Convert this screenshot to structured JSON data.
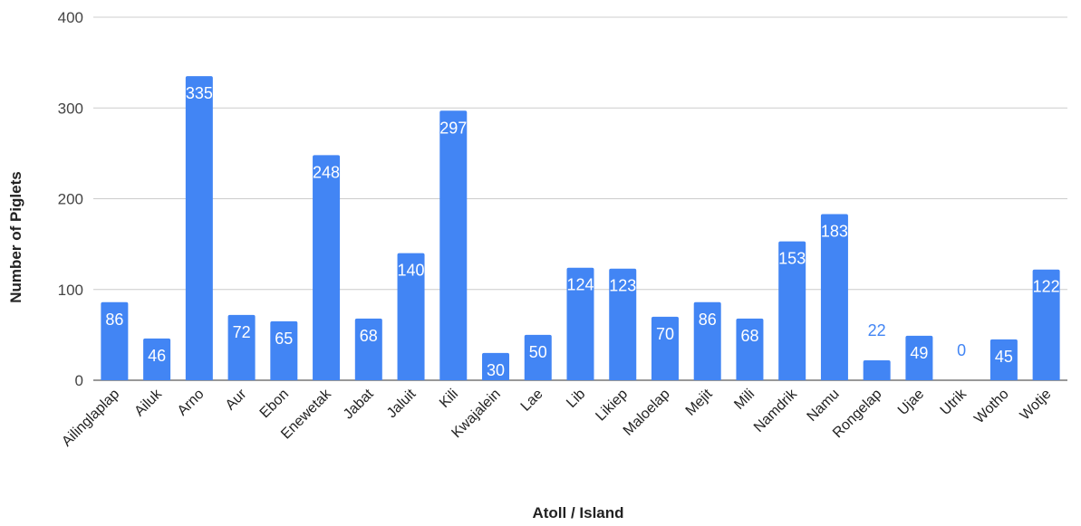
{
  "chart_data": {
    "type": "bar",
    "title": "",
    "xlabel": "Atoll / Island",
    "ylabel": "Number of Piglets",
    "ylim": [
      0,
      400
    ],
    "yticks": [
      0,
      100,
      200,
      300,
      400
    ],
    "grid": true,
    "legend": "none",
    "categories": [
      "Ailinglaplap",
      "Ailuk",
      "Arno",
      "Aur",
      "Ebon",
      "Enewetak",
      "Jabat",
      "Jaluit",
      "Kili",
      "Kwajalein",
      "Lae",
      "Lib",
      "Likiep",
      "Maloelap",
      "Mejit",
      "Mili",
      "Namdrik",
      "Namu",
      "Rongelap",
      "Ujae",
      "Utrik",
      "Wotho",
      "Wotje"
    ],
    "values": [
      86,
      46,
      335,
      72,
      65,
      248,
      68,
      140,
      297,
      30,
      50,
      124,
      123,
      70,
      86,
      68,
      153,
      183,
      22,
      49,
      0,
      45,
      122
    ],
    "colors": {
      "bar": "#4285f4",
      "label_inside": "#ffffff",
      "label_outside": "#4285f4",
      "grid": "#cccccc",
      "baseline": "#333333"
    }
  }
}
